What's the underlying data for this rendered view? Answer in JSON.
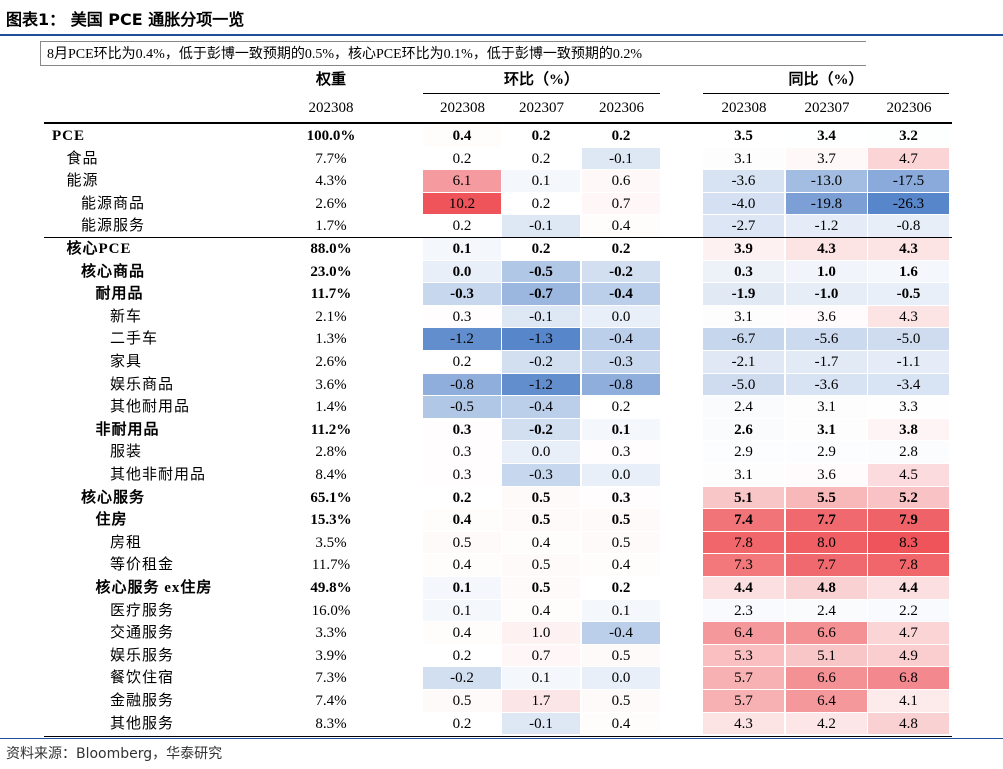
{
  "header": {
    "title": "图表1：  美国 PCE 通胀分项一览"
  },
  "note": "8月PCE环比为0.4%，低于彭博一致预期的0.5%，核心PCE环比为0.1%，低于彭博一致预期的0.2%",
  "table": {
    "weight_label": "权重",
    "weight_date": "202308",
    "mom_label": "环比（%）",
    "mom_dates": [
      "202308",
      "202307",
      "202306"
    ],
    "yoy_label": "同比（%）",
    "yoy_dates": [
      "202308",
      "202307",
      "202306"
    ],
    "rows": [
      {
        "name": "PCE",
        "level": 0,
        "bold": true,
        "weight": "100.0%",
        "mom": [
          "0.4",
          "0.2",
          "0.2"
        ],
        "yoy": [
          "3.5",
          "3.4",
          "3.2"
        ]
      },
      {
        "name": "食品",
        "level": 1,
        "weight": "7.7%",
        "mom": [
          "0.2",
          "0.2",
          "-0.1"
        ],
        "yoy": [
          "3.1",
          "3.7",
          "4.7"
        ]
      },
      {
        "name": "能源",
        "level": 1,
        "weight": "4.3%",
        "mom": [
          "6.1",
          "0.1",
          "0.6"
        ],
        "yoy": [
          "-3.6",
          "-13.0",
          "-17.5"
        ]
      },
      {
        "name": "能源商品",
        "level": 2,
        "weight": "2.6%",
        "mom": [
          "10.2",
          "0.2",
          "0.7"
        ],
        "yoy": [
          "-4.0",
          "-19.8",
          "-26.3"
        ]
      },
      {
        "name": "能源服务",
        "level": 2,
        "weight": "1.7%",
        "mom": [
          "0.2",
          "-0.1",
          "0.4"
        ],
        "yoy": [
          "-2.7",
          "-1.2",
          "-0.8"
        ]
      },
      {
        "name": "核心PCE",
        "level": 1,
        "bold": true,
        "weight": "88.0%",
        "mom": [
          "0.1",
          "0.2",
          "0.2"
        ],
        "yoy": [
          "3.9",
          "4.3",
          "4.3"
        ]
      },
      {
        "name": "核心商品",
        "level": 2,
        "bold": true,
        "weight": "23.0%",
        "mom": [
          "0.0",
          "-0.5",
          "-0.2"
        ],
        "yoy": [
          "0.3",
          "1.0",
          "1.6"
        ]
      },
      {
        "name": "耐用品",
        "level": 3,
        "bold": true,
        "weight": "11.7%",
        "mom": [
          "-0.3",
          "-0.7",
          "-0.4"
        ],
        "yoy": [
          "-1.9",
          "-1.0",
          "-0.5"
        ]
      },
      {
        "name": "新车",
        "level": 4,
        "weight": "2.1%",
        "mom": [
          "0.3",
          "-0.1",
          "0.0"
        ],
        "yoy": [
          "3.1",
          "3.6",
          "4.3"
        ]
      },
      {
        "name": "二手车",
        "level": 4,
        "weight": "1.3%",
        "mom": [
          "-1.2",
          "-1.3",
          "-0.4"
        ],
        "yoy": [
          "-6.7",
          "-5.6",
          "-5.0"
        ]
      },
      {
        "name": "家具",
        "level": 4,
        "weight": "2.6%",
        "mom": [
          "0.2",
          "-0.2",
          "-0.3"
        ],
        "yoy": [
          "-2.1",
          "-1.7",
          "-1.1"
        ]
      },
      {
        "name": "娱乐商品",
        "level": 4,
        "weight": "3.6%",
        "mom": [
          "-0.8",
          "-1.2",
          "-0.8"
        ],
        "yoy": [
          "-5.0",
          "-3.6",
          "-3.4"
        ]
      },
      {
        "name": "其他耐用品",
        "level": 4,
        "weight": "1.4%",
        "mom": [
          "-0.5",
          "-0.4",
          "0.2"
        ],
        "yoy": [
          "2.4",
          "3.1",
          "3.3"
        ]
      },
      {
        "name": "非耐用品",
        "level": 3,
        "bold": true,
        "weight": "11.2%",
        "mom": [
          "0.3",
          "-0.2",
          "0.1"
        ],
        "yoy": [
          "2.6",
          "3.1",
          "3.8"
        ]
      },
      {
        "name": "服装",
        "level": 4,
        "weight": "2.8%",
        "mom": [
          "0.3",
          "0.0",
          "0.3"
        ],
        "yoy": [
          "2.9",
          "2.9",
          "2.8"
        ]
      },
      {
        "name": "其他非耐用品",
        "level": 4,
        "weight": "8.4%",
        "mom": [
          "0.3",
          "-0.3",
          "0.0"
        ],
        "yoy": [
          "3.1",
          "3.6",
          "4.5"
        ]
      },
      {
        "name": "核心服务",
        "level": 2,
        "bold": true,
        "weight": "65.1%",
        "mom": [
          "0.2",
          "0.5",
          "0.3"
        ],
        "yoy": [
          "5.1",
          "5.5",
          "5.2"
        ]
      },
      {
        "name": "住房",
        "level": 3,
        "bold": true,
        "weight": "15.3%",
        "mom": [
          "0.4",
          "0.5",
          "0.5"
        ],
        "yoy": [
          "7.4",
          "7.7",
          "7.9"
        ]
      },
      {
        "name": "房租",
        "level": 4,
        "weight": "3.5%",
        "mom": [
          "0.5",
          "0.4",
          "0.5"
        ],
        "yoy": [
          "7.8",
          "8.0",
          "8.3"
        ]
      },
      {
        "name": "等价租金",
        "level": 4,
        "weight": "11.7%",
        "mom": [
          "0.4",
          "0.5",
          "0.4"
        ],
        "yoy": [
          "7.3",
          "7.7",
          "7.8"
        ]
      },
      {
        "name": "核心服务 ex住房",
        "level": 3,
        "bold": true,
        "weight": "49.8%",
        "mom": [
          "0.1",
          "0.5",
          "0.2"
        ],
        "yoy": [
          "4.4",
          "4.8",
          "4.4"
        ]
      },
      {
        "name": "医疗服务",
        "level": 4,
        "weight": "16.0%",
        "mom": [
          "0.1",
          "0.4",
          "0.1"
        ],
        "yoy": [
          "2.3",
          "2.4",
          "2.2"
        ]
      },
      {
        "name": "交通服务",
        "level": 4,
        "weight": "3.3%",
        "mom": [
          "0.4",
          "1.0",
          "-0.4"
        ],
        "yoy": [
          "6.4",
          "6.6",
          "4.7"
        ]
      },
      {
        "name": "娱乐服务",
        "level": 4,
        "weight": "3.9%",
        "mom": [
          "0.2",
          "0.7",
          "0.5"
        ],
        "yoy": [
          "5.3",
          "5.1",
          "4.9"
        ]
      },
      {
        "name": "餐饮住宿",
        "level": 4,
        "weight": "7.3%",
        "mom": [
          "-0.2",
          "0.1",
          "0.0"
        ],
        "yoy": [
          "5.7",
          "6.6",
          "6.8"
        ]
      },
      {
        "name": "金融服务",
        "level": 4,
        "weight": "7.4%",
        "mom": [
          "0.5",
          "1.7",
          "0.5"
        ],
        "yoy": [
          "5.7",
          "6.4",
          "4.1"
        ]
      },
      {
        "name": "其他服务",
        "level": 4,
        "weight": "8.3%",
        "mom": [
          "0.2",
          "-0.1",
          "0.4"
        ],
        "yoy": [
          "4.3",
          "4.2",
          "4.8"
        ]
      }
    ]
  },
  "footer": {
    "source": "资料来源：Bloomberg，华泰研究"
  }
}
